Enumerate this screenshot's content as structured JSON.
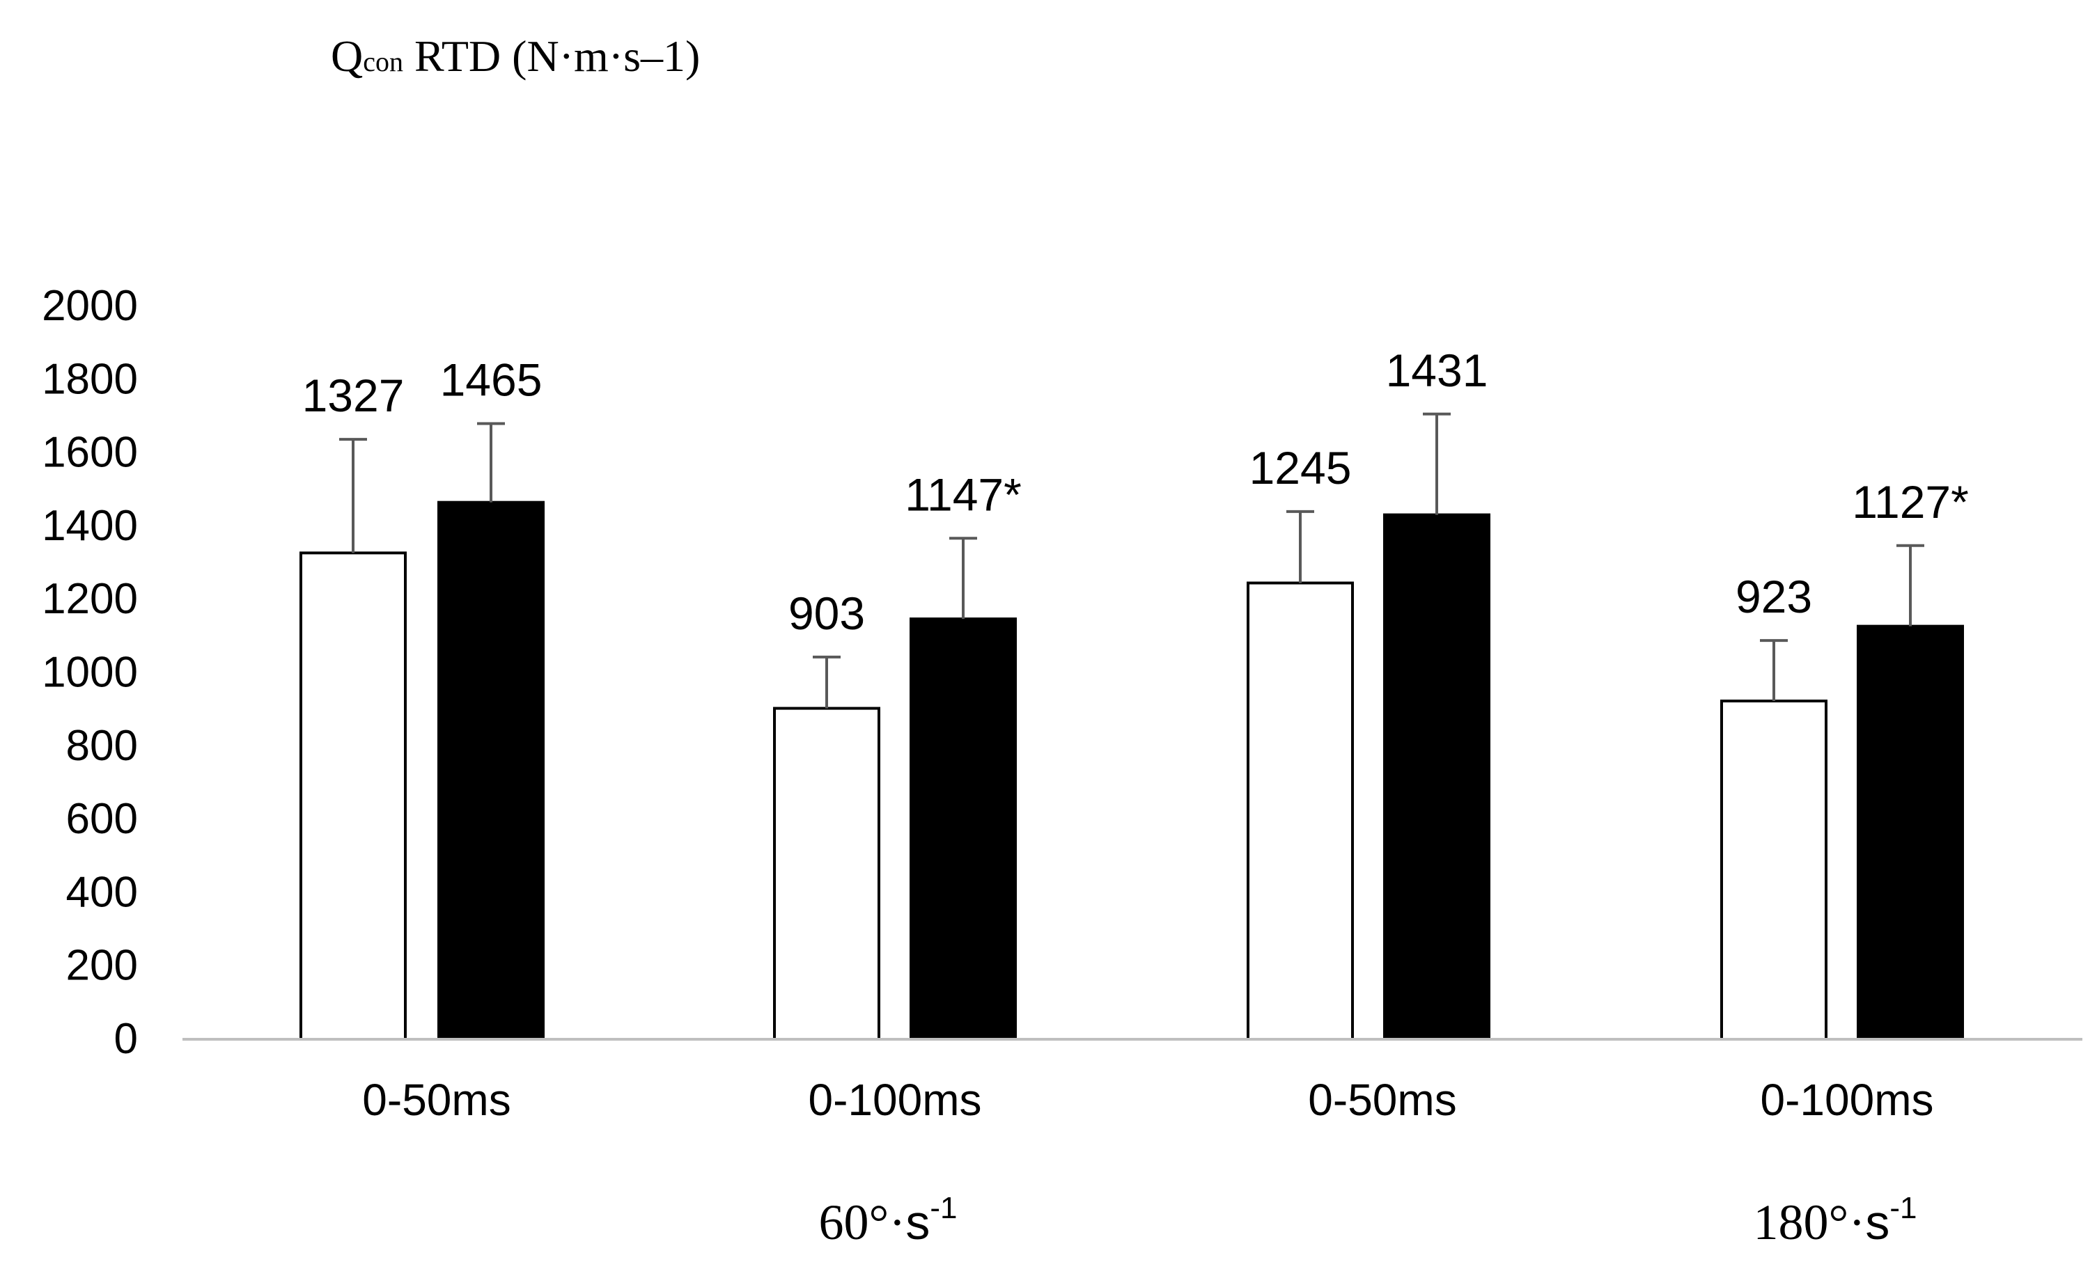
{
  "chart_data": {
    "type": "bar",
    "title": {
      "main": "Q",
      "sub": "con",
      "rest": " RTD (N·m·s–1)"
    },
    "ylim": [
      0,
      2000
    ],
    "yticks": [
      0,
      200,
      400,
      600,
      800,
      1000,
      1200,
      1400,
      1600,
      1800,
      2000
    ],
    "categories": [
      "0-50ms",
      "0-100ms",
      "0-50ms",
      "0-100ms"
    ],
    "groups": [
      {
        "label": "60°·",
        "unit": "s",
        "exp": "-1"
      },
      {
        "label": "180°·",
        "unit": "s",
        "exp": "-1"
      }
    ],
    "series": [
      {
        "name": "white-series",
        "fill": "#ffffff",
        "stroke": "#000000",
        "values": [
          1327,
          903,
          1245,
          923
        ],
        "errors": [
          310,
          140,
          195,
          165
        ],
        "labels": [
          "1327",
          "903",
          "1245",
          "923"
        ]
      },
      {
        "name": "black-series",
        "fill": "#000000",
        "stroke": "#000000",
        "values": [
          1465,
          1147,
          1431,
          1127
        ],
        "errors": [
          215,
          220,
          275,
          220
        ],
        "labels": [
          "1465",
          "1147*",
          "1431",
          "1127*"
        ]
      }
    ],
    "colors": {
      "axis": "#bfbfbf",
      "errorbar": "#595959",
      "text": "#000000"
    }
  }
}
